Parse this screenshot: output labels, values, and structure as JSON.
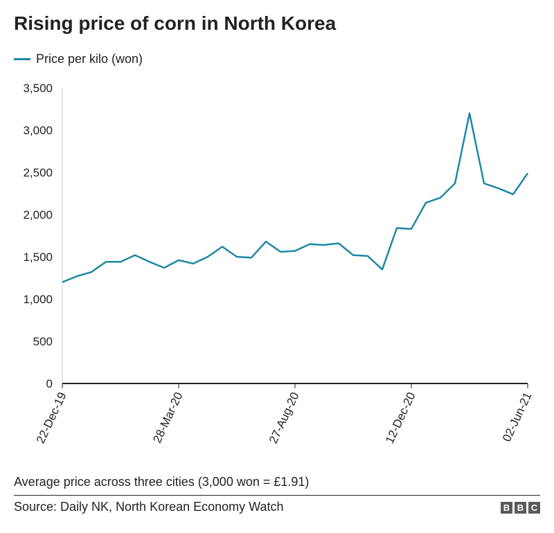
{
  "chart_data": {
    "type": "line",
    "title": "Rising price of corn in North Korea",
    "series": [
      {
        "name": "Price per kilo (won)",
        "color": "#1d87a5",
        "values": [
          1200,
          1270,
          1320,
          1440,
          1440,
          1520,
          1440,
          1370,
          1460,
          1420,
          1500,
          1620,
          1500,
          1490,
          1680,
          1560,
          1570,
          1650,
          1640,
          1660,
          1520,
          1510,
          1350,
          1840,
          1830,
          2140,
          2200,
          2370,
          3200,
          2370,
          2310,
          2240,
          2490
        ]
      }
    ],
    "x_tick_labels": [
      "22-Dec-19",
      "28-Mar-20",
      "27-Aug-20",
      "12-Dec-20",
      "02-Jun-21"
    ],
    "x_tick_positions": [
      0,
      8,
      16,
      24,
      32
    ],
    "y_ticks": [
      0,
      500,
      1000,
      1500,
      2000,
      2500,
      3000,
      3500
    ],
    "y_tick_labels": [
      "0",
      "500",
      "1,000",
      "1,500",
      "2,000",
      "2,500",
      "3,000",
      "3,500"
    ],
    "ylim": [
      0,
      3500
    ],
    "grid": false,
    "legend_position": "top-left",
    "note": "Average price across three cities (3,000 won = £1.91)",
    "source": "Source: Daily NK, North Korean Economy Watch",
    "brand": "BBC",
    "brand_letters": [
      "B",
      "B",
      "C"
    ]
  }
}
